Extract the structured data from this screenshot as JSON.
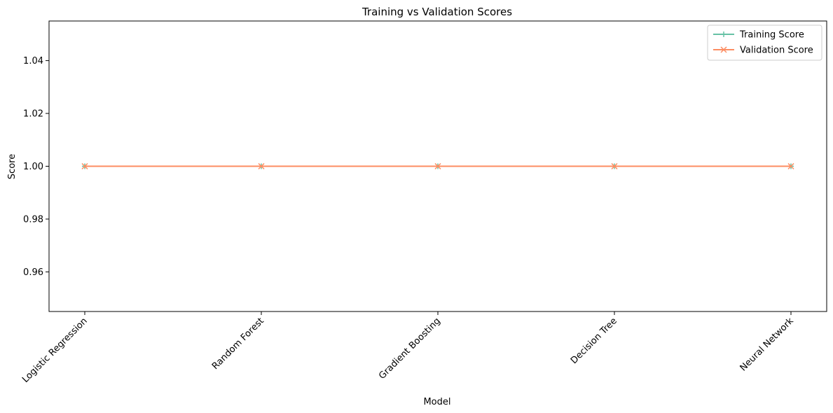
{
  "chart_data": {
    "type": "line",
    "title": "Training vs Validation Scores",
    "xlabel": "Model",
    "ylabel": "Score",
    "categories": [
      "Logistic Regression",
      "Random Forest",
      "Gradient Boosting",
      "Decision Tree",
      "Neural Network"
    ],
    "series": [
      {
        "name": "Training Score",
        "values": [
          1.0,
          1.0,
          1.0,
          1.0,
          1.0
        ],
        "color": "#66c2a5",
        "marker": "plus"
      },
      {
        "name": "Validation Score",
        "values": [
          1.0,
          1.0,
          1.0,
          1.0,
          1.0
        ],
        "color": "#fc8d62",
        "marker": "x"
      }
    ],
    "ylim": [
      0.945,
      1.055
    ],
    "yticks": [
      0.96,
      0.98,
      1.0,
      1.02,
      1.04
    ],
    "ytick_labels": [
      "0.96",
      "0.98",
      "1.00",
      "1.02",
      "1.04"
    ],
    "grid": false,
    "legend_position": "top-right",
    "xtick_rotation": 45
  }
}
